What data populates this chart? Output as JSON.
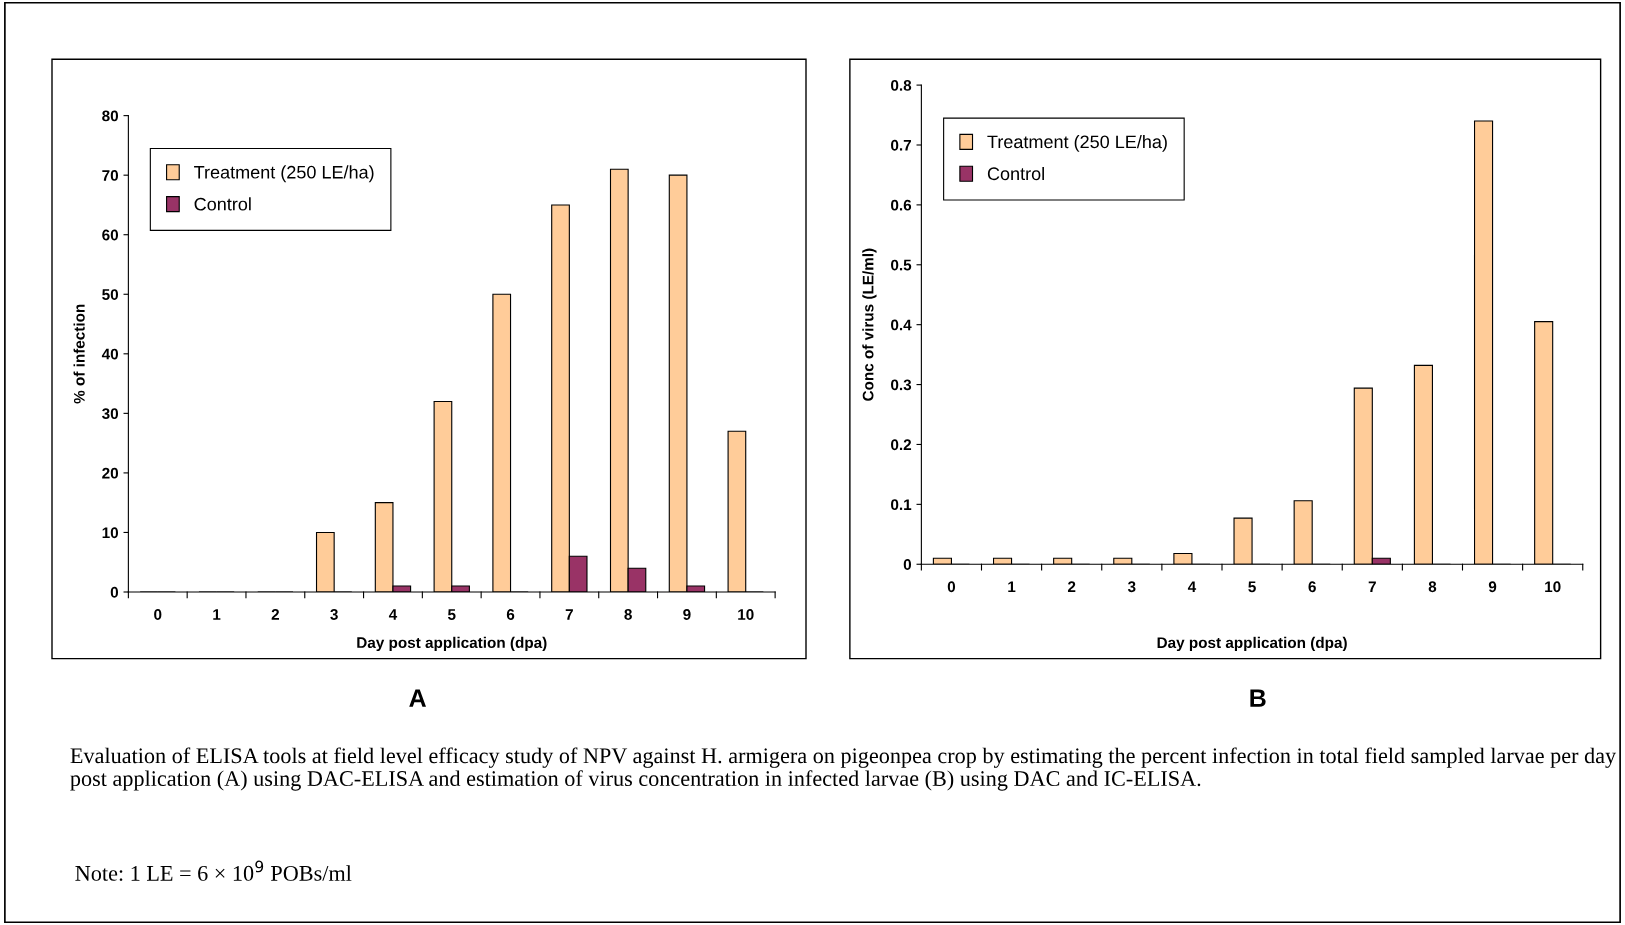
{
  "chart_data": [
    {
      "type": "bar",
      "title": "A",
      "xlabel": "Day post application (dpa)",
      "ylabel": "% of infection",
      "categories": [
        "0",
        "1",
        "2",
        "3",
        "4",
        "5",
        "6",
        "7",
        "8",
        "9",
        "10"
      ],
      "series": [
        {
          "name": "Treatment (250 LE/ha)",
          "color": "#ffcc99",
          "values": [
            0,
            0,
            0,
            10,
            15,
            32,
            50,
            65,
            71,
            70,
            27
          ]
        },
        {
          "name": "Control",
          "color": "#993366",
          "values": [
            0,
            0,
            0,
            0,
            1,
            1,
            0,
            6,
            4,
            1,
            0
          ]
        }
      ],
      "ylim": [
        0,
        80
      ],
      "yticks": [
        0,
        10,
        20,
        30,
        40,
        50,
        60,
        70,
        80
      ],
      "grid": false,
      "legend": "top left",
      "annotations": [
        "Evaluation of ELISA tools at field level efficacy study of NPV against H. armigera on pigeonpea crop by estimating the percent infection in total field sampled larvae per day post application (A) using DAC-ELISA and estimation of virus concentration in infected larvae (B) using DAC and IC-ELISA.",
        "Note: 1 LE = 6 × 10$^{9}$ POBs/ml"
      ]
    },
    {
      "type": "bar",
      "title": "B",
      "xlabel": "Day post application (dpa)",
      "ylabel": "Conc of virus (LE/ml)",
      "categories": [
        "0",
        "1",
        "2",
        "3",
        "4",
        "5",
        "6",
        "7",
        "8",
        "9",
        "10"
      ],
      "series": [
        {
          "name": "Treatment (250 LE/ha)",
          "color": "#ffcc99",
          "values": [
            0.01,
            0.01,
            0.01,
            0.01,
            0.018,
            0.077,
            0.106,
            0.294,
            0.332,
            0.74,
            0.405
          ]
        },
        {
          "name": "Control",
          "color": "#993366",
          "values": [
            0,
            0,
            0,
            0,
            0,
            0,
            0,
            0.01,
            0,
            0,
            0
          ]
        }
      ],
      "ylim": [
        0,
        0.8
      ],
      "yticks": [
        {
          "value": 0,
          "label": "0"
        },
        0.1,
        0.2,
        0.3,
        0.4,
        0.5,
        0.6,
        0.7,
        0.8
      ],
      "grid": false,
      "legend": "top left"
    }
  ]
}
